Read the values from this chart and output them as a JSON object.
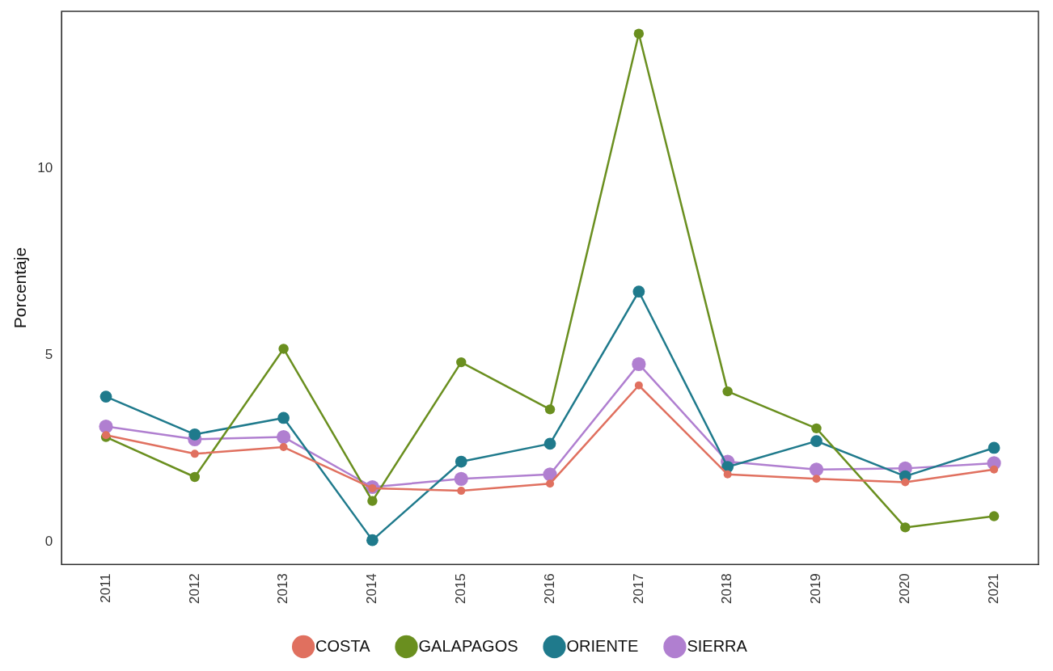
{
  "chart_data": {
    "type": "line",
    "ylabel": "Porcentaje",
    "categories": [
      "2011",
      "2012",
      "2013",
      "2014",
      "2015",
      "2016",
      "2017",
      "2018",
      "2019",
      "2020",
      "2021"
    ],
    "series": [
      {
        "name": "COSTA",
        "color": "#e0705f",
        "values": [
          2.86,
          2.36,
          2.54,
          1.44,
          1.37,
          1.56,
          4.19,
          1.81,
          1.69,
          1.6,
          1.94
        ]
      },
      {
        "name": "GALAPAGOS",
        "color": "#6a8f1f",
        "values": [
          2.81,
          1.74,
          5.17,
          1.1,
          4.81,
          3.55,
          13.6,
          4.03,
          3.04,
          0.39,
          0.69
        ]
      },
      {
        "name": "ORIENTE",
        "color": "#1f7a8c",
        "values": [
          3.89,
          2.88,
          3.32,
          0.05,
          2.15,
          2.63,
          6.7,
          2.01,
          2.7,
          1.76,
          2.52
        ]
      },
      {
        "name": "SIERRA",
        "color": "#b07fd0",
        "values": [
          3.09,
          2.75,
          2.81,
          1.47,
          1.69,
          1.81,
          4.76,
          2.15,
          1.94,
          1.97,
          2.11
        ]
      }
    ],
    "ylim": [
      -0.6,
      14.2
    ],
    "yticks": [
      0,
      5,
      10
    ],
    "grid": false,
    "legend": "bottom",
    "marker": "circle",
    "line_style": "solid"
  }
}
